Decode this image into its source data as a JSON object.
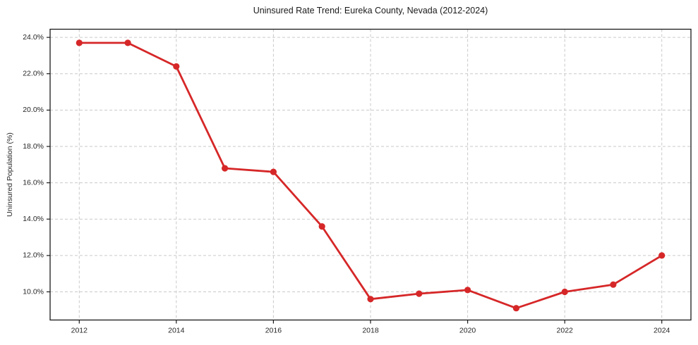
{
  "figure": {
    "background": "#ffffff"
  },
  "chart_data": {
    "type": "line",
    "title": "Uninsured Rate Trend: Eureka County, Nevada (2012-2024)",
    "ylabel": "Uninsured Population (%)",
    "xlabel": "",
    "x": [
      2012,
      2013,
      2014,
      2015,
      2016,
      2017,
      2018,
      2019,
      2020,
      2021,
      2022,
      2023,
      2024
    ],
    "values": [
      23.7,
      23.7,
      22.4,
      16.8,
      16.6,
      13.6,
      9.6,
      9.9,
      10.1,
      9.1,
      10.0,
      10.4,
      12.0
    ],
    "xlim": [
      2011.4,
      2024.6
    ],
    "ylim": [
      8.45,
      24.45
    ],
    "xticks": [
      2012,
      2014,
      2016,
      2018,
      2020,
      2022,
      2024
    ],
    "xtick_labels": [
      "2012",
      "2014",
      "2016",
      "2018",
      "2020",
      "2022",
      "2024"
    ],
    "yticks": [
      10,
      12,
      14,
      16,
      18,
      20,
      22,
      24
    ],
    "ytick_labels": [
      "10.0%",
      "12.0%",
      "14.0%",
      "16.0%",
      "18.0%",
      "20.0%",
      "22.0%",
      "24.0%"
    ],
    "grid": true,
    "grid_style": "dashed",
    "legend": "none",
    "colors": {
      "line": "#d62728",
      "marker": "#d62728",
      "grid": "#c9c9c9",
      "spine": "#1a1a1a",
      "tick_text": "#262626"
    }
  }
}
